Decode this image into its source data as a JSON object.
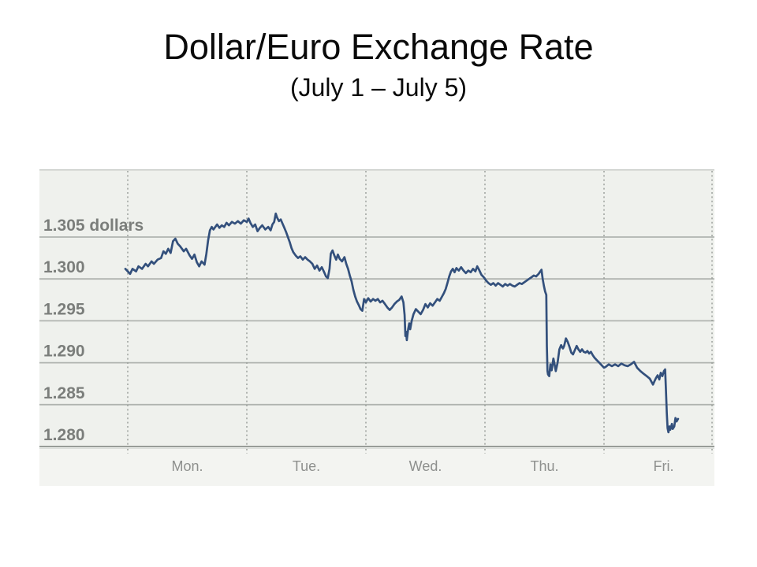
{
  "title": "Dollar/Euro Exchange Rate",
  "subtitle": "(July 1 – July 5)",
  "colors": {
    "line": "#33507c",
    "plot_bg": "#eff1ed",
    "label_strip_bg": "#f3f4f1",
    "grid_solid": "#b0b4b0",
    "grid_dotted": "#9ba09b",
    "axis_bottom": "#989c98",
    "axis_bottom_shadow": "#dcdfdb",
    "top_border": "#c9ccc8",
    "ytick_text": "#7b7e7b",
    "xtick_text": "#8e908e",
    "title_text": "#0a0a0a"
  },
  "chart_data": {
    "type": "line",
    "title": "Dollar/Euro Exchange Rate",
    "subtitle": "(July 1 – July 5)",
    "xlabel": "",
    "ylabel": "",
    "unit_note": "dollars",
    "grid": {
      "horizontal": "solid",
      "vertical": "dotted at day boundaries",
      "ticks_below_axis": true
    },
    "legend": "none",
    "x_categories": [
      "Mon.",
      "Tue.",
      "Wed.",
      "Thu.",
      "Fri."
    ],
    "y_axis": {
      "top_value": 1.305,
      "bottom_value": 1.28,
      "plot_top_value": 1.3131
    },
    "ylim": [
      1.28,
      1.3131
    ],
    "y_ticks": [
      {
        "value": 1.305,
        "label": "1.305 dollars"
      },
      {
        "value": 1.3,
        "label": "1.300"
      },
      {
        "value": 1.295,
        "label": "1.295"
      },
      {
        "value": 1.29,
        "label": "1.290"
      },
      {
        "value": 1.285,
        "label": "1.285"
      },
      {
        "value": 1.28,
        "label": "1.280"
      }
    ],
    "x_unit": "days since Monday 00:00",
    "points": [
      [
        -0.02,
        1.3012
      ],
      [
        0,
        1.3009
      ],
      [
        0.02,
        1.3006
      ],
      [
        0.04,
        1.3012
      ],
      [
        0.07,
        1.3009
      ],
      [
        0.09,
        1.3015
      ],
      [
        0.12,
        1.3012
      ],
      [
        0.15,
        1.3018
      ],
      [
        0.17,
        1.3015
      ],
      [
        0.2,
        1.3021
      ],
      [
        0.22,
        1.3018
      ],
      [
        0.25,
        1.3023
      ],
      [
        0.28,
        1.3025
      ],
      [
        0.3,
        1.3033
      ],
      [
        0.32,
        1.303
      ],
      [
        0.34,
        1.3036
      ],
      [
        0.36,
        1.3031
      ],
      [
        0.38,
        1.3045
      ],
      [
        0.4,
        1.3048
      ],
      [
        0.42,
        1.3042
      ],
      [
        0.44,
        1.3039
      ],
      [
        0.47,
        1.3033
      ],
      [
        0.49,
        1.3036
      ],
      [
        0.52,
        1.3028
      ],
      [
        0.54,
        1.3024
      ],
      [
        0.56,
        1.3029
      ],
      [
        0.58,
        1.302
      ],
      [
        0.6,
        1.3015
      ],
      [
        0.62,
        1.3021
      ],
      [
        0.645,
        1.3017
      ],
      [
        0.66,
        1.303
      ],
      [
        0.675,
        1.3046
      ],
      [
        0.69,
        1.3058
      ],
      [
        0.705,
        1.3062
      ],
      [
        0.72,
        1.3059
      ],
      [
        0.75,
        1.3065
      ],
      [
        0.77,
        1.3061
      ],
      [
        0.79,
        1.3064
      ],
      [
        0.81,
        1.3062
      ],
      [
        0.83,
        1.3067
      ],
      [
        0.85,
        1.3064
      ],
      [
        0.875,
        1.3068
      ],
      [
        0.9,
        1.3066
      ],
      [
        0.925,
        1.3069
      ],
      [
        0.95,
        1.3066
      ],
      [
        0.975,
        1.307
      ],
      [
        1,
        1.3068
      ],
      [
        1.015,
        1.3072
      ],
      [
        1.03,
        1.3067
      ],
      [
        1.05,
        1.3062
      ],
      [
        1.07,
        1.3065
      ],
      [
        1.09,
        1.3057
      ],
      [
        1.11,
        1.3061
      ],
      [
        1.13,
        1.3064
      ],
      [
        1.155,
        1.3059
      ],
      [
        1.18,
        1.3062
      ],
      [
        1.2,
        1.3058
      ],
      [
        1.215,
        1.3065
      ],
      [
        1.23,
        1.3068
      ],
      [
        1.243,
        1.3078
      ],
      [
        1.255,
        1.3073
      ],
      [
        1.27,
        1.3069
      ],
      [
        1.285,
        1.3071
      ],
      [
        1.3,
        1.3066
      ],
      [
        1.315,
        1.3061
      ],
      [
        1.33,
        1.3056
      ],
      [
        1.345,
        1.305
      ],
      [
        1.36,
        1.3044
      ],
      [
        1.375,
        1.3037
      ],
      [
        1.39,
        1.3032
      ],
      [
        1.41,
        1.3028
      ],
      [
        1.43,
        1.3025
      ],
      [
        1.45,
        1.3027
      ],
      [
        1.47,
        1.3023
      ],
      [
        1.49,
        1.3026
      ],
      [
        1.51,
        1.3023
      ],
      [
        1.53,
        1.3021
      ],
      [
        1.55,
        1.3018
      ],
      [
        1.57,
        1.3012
      ],
      [
        1.59,
        1.3016
      ],
      [
        1.61,
        1.301
      ],
      [
        1.63,
        1.3014
      ],
      [
        1.65,
        1.3008
      ],
      [
        1.665,
        1.3003
      ],
      [
        1.68,
        1.3001
      ],
      [
        1.695,
        1.3012
      ],
      [
        1.705,
        1.303
      ],
      [
        1.72,
        1.3034
      ],
      [
        1.735,
        1.3028
      ],
      [
        1.75,
        1.3023
      ],
      [
        1.765,
        1.3029
      ],
      [
        1.78,
        1.3024
      ],
      [
        1.8,
        1.3021
      ],
      [
        1.82,
        1.3026
      ],
      [
        1.835,
        1.3018
      ],
      [
        1.85,
        1.3012
      ],
      [
        1.865,
        1.3004
      ],
      [
        1.88,
        1.2997
      ],
      [
        1.895,
        1.2987
      ],
      [
        1.91,
        1.2979
      ],
      [
        1.925,
        1.2973
      ],
      [
        1.94,
        1.2969
      ],
      [
        1.955,
        1.2964
      ],
      [
        1.97,
        1.2962
      ],
      [
        1.985,
        1.2976
      ],
      [
        2,
        1.2972
      ],
      [
        2.02,
        1.2977
      ],
      [
        2.04,
        1.2973
      ],
      [
        2.06,
        1.2976
      ],
      [
        2.08,
        1.2974
      ],
      [
        2.1,
        1.2976
      ],
      [
        2.12,
        1.2972
      ],
      [
        2.14,
        1.2974
      ],
      [
        2.16,
        1.297
      ],
      [
        2.18,
        1.2966
      ],
      [
        2.2,
        1.2963
      ],
      [
        2.22,
        1.2966
      ],
      [
        2.24,
        1.297
      ],
      [
        2.26,
        1.2973
      ],
      [
        2.28,
        1.2975
      ],
      [
        2.3,
        1.2979
      ],
      [
        2.315,
        1.2972
      ],
      [
        2.325,
        1.2957
      ],
      [
        2.332,
        1.2932
      ],
      [
        2.338,
        1.2937
      ],
      [
        2.344,
        1.2927
      ],
      [
        2.355,
        1.294
      ],
      [
        2.364,
        1.2947
      ],
      [
        2.372,
        1.294
      ],
      [
        2.385,
        1.295
      ],
      [
        2.4,
        1.2958
      ],
      [
        2.42,
        1.2964
      ],
      [
        2.44,
        1.2961
      ],
      [
        2.46,
        1.2958
      ],
      [
        2.48,
        1.2963
      ],
      [
        2.5,
        1.297
      ],
      [
        2.52,
        1.2966
      ],
      [
        2.54,
        1.2971
      ],
      [
        2.56,
        1.2968
      ],
      [
        2.58,
        1.2972
      ],
      [
        2.6,
        1.2976
      ],
      [
        2.62,
        1.2974
      ],
      [
        2.64,
        1.2979
      ],
      [
        2.655,
        1.2983
      ],
      [
        2.67,
        1.2988
      ],
      [
        2.685,
        1.2995
      ],
      [
        2.7,
        1.3003
      ],
      [
        2.715,
        1.3009
      ],
      [
        2.73,
        1.3012
      ],
      [
        2.745,
        1.3008
      ],
      [
        2.76,
        1.3013
      ],
      [
        2.78,
        1.301
      ],
      [
        2.8,
        1.3014
      ],
      [
        2.82,
        1.301
      ],
      [
        2.84,
        1.3007
      ],
      [
        2.86,
        1.301
      ],
      [
        2.88,
        1.3008
      ],
      [
        2.9,
        1.3012
      ],
      [
        2.92,
        1.3009
      ],
      [
        2.935,
        1.3015
      ],
      [
        2.95,
        1.3011
      ],
      [
        2.97,
        1.3005
      ],
      [
        2.99,
        1.3002
      ],
      [
        3.01,
        1.2998
      ],
      [
        3.03,
        1.2995
      ],
      [
        3.05,
        1.2993
      ],
      [
        3.07,
        1.2995
      ],
      [
        3.09,
        1.2992
      ],
      [
        3.11,
        1.2995
      ],
      [
        3.13,
        1.2993
      ],
      [
        3.15,
        1.2991
      ],
      [
        3.17,
        1.2994
      ],
      [
        3.19,
        1.2992
      ],
      [
        3.21,
        1.2994
      ],
      [
        3.23,
        1.2992
      ],
      [
        3.25,
        1.2991
      ],
      [
        3.27,
        1.2993
      ],
      [
        3.29,
        1.2995
      ],
      [
        3.31,
        1.2994
      ],
      [
        3.33,
        1.2996
      ],
      [
        3.35,
        1.2998
      ],
      [
        3.37,
        1.3
      ],
      [
        3.39,
        1.3002
      ],
      [
        3.41,
        1.3004
      ],
      [
        3.43,
        1.3003
      ],
      [
        3.45,
        1.3006
      ],
      [
        3.465,
        1.3009
      ],
      [
        3.475,
        1.3011
      ],
      [
        3.485,
        1.3
      ],
      [
        3.495,
        1.2992
      ],
      [
        3.505,
        1.2985
      ],
      [
        3.515,
        1.2981
      ],
      [
        3.52,
        1.292
      ],
      [
        3.525,
        1.289
      ],
      [
        3.53,
        1.2886
      ],
      [
        3.54,
        1.2884
      ],
      [
        3.55,
        1.2898
      ],
      [
        3.56,
        1.2891
      ],
      [
        3.575,
        1.2905
      ],
      [
        3.585,
        1.2898
      ],
      [
        3.595,
        1.289
      ],
      [
        3.61,
        1.29
      ],
      [
        3.625,
        1.2916
      ],
      [
        3.64,
        1.2921
      ],
      [
        3.655,
        1.2917
      ],
      [
        3.665,
        1.292
      ],
      [
        3.68,
        1.2929
      ],
      [
        3.695,
        1.2925
      ],
      [
        3.71,
        1.2919
      ],
      [
        3.725,
        1.2912
      ],
      [
        3.74,
        1.291
      ],
      [
        3.755,
        1.2915
      ],
      [
        3.77,
        1.292
      ],
      [
        3.785,
        1.2916
      ],
      [
        3.8,
        1.2913
      ],
      [
        3.815,
        1.2916
      ],
      [
        3.83,
        1.2913
      ],
      [
        3.845,
        1.2912
      ],
      [
        3.86,
        1.2914
      ],
      [
        3.875,
        1.2911
      ],
      [
        3.89,
        1.2913
      ],
      [
        3.905,
        1.2909
      ],
      [
        3.92,
        1.2906
      ],
      [
        3.94,
        1.2903
      ],
      [
        3.96,
        1.29
      ],
      [
        3.98,
        1.2897
      ],
      [
        4,
        1.2894
      ],
      [
        4.013,
        1.2895
      ],
      [
        4.04,
        1.2898
      ],
      [
        4.066,
        1.2896
      ],
      [
        4.093,
        1.2898
      ],
      [
        4.119,
        1.2896
      ],
      [
        4.146,
        1.2899
      ],
      [
        4.172,
        1.2897
      ],
      [
        4.199,
        1.2896
      ],
      [
        4.225,
        1.2898
      ],
      [
        4.252,
        1.2901
      ],
      [
        4.278,
        1.2894
      ],
      [
        4.305,
        1.289
      ],
      [
        4.331,
        1.2887
      ],
      [
        4.358,
        1.2884
      ],
      [
        4.384,
        1.2881
      ],
      [
        4.411,
        1.2874
      ],
      [
        4.424,
        1.2878
      ],
      [
        4.437,
        1.2882
      ],
      [
        4.45,
        1.2885
      ],
      [
        4.464,
        1.288
      ],
      [
        4.477,
        1.2888
      ],
      [
        4.49,
        1.2884
      ],
      [
        4.503,
        1.289
      ],
      [
        4.513,
        1.2892
      ],
      [
        4.52,
        1.2868
      ],
      [
        4.527,
        1.284
      ],
      [
        4.534,
        1.2822
      ],
      [
        4.541,
        1.2817
      ],
      [
        4.55,
        1.2824
      ],
      [
        4.556,
        1.282
      ],
      [
        4.563,
        1.2823
      ],
      [
        4.57,
        1.2827
      ],
      [
        4.577,
        1.2821
      ],
      [
        4.59,
        1.2824
      ],
      [
        4.6,
        1.2834
      ],
      [
        4.61,
        1.283
      ],
      [
        4.622,
        1.2833
      ]
    ]
  }
}
